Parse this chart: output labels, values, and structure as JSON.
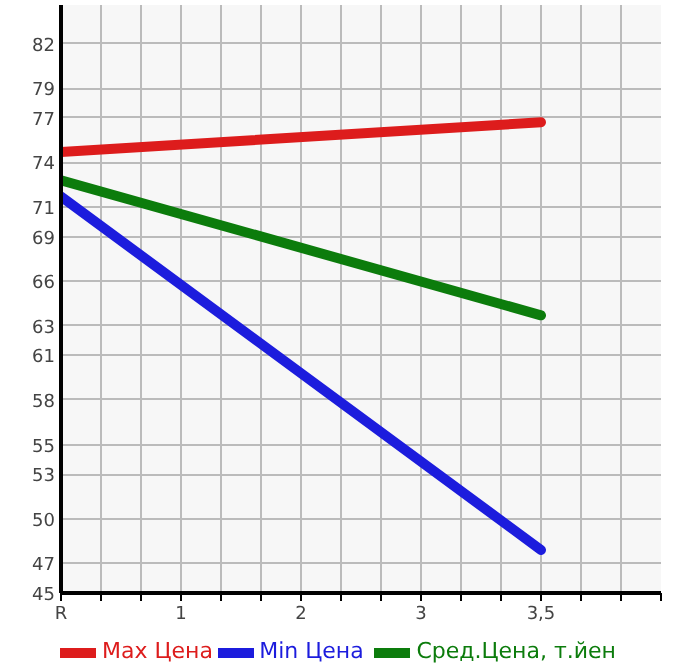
{
  "chart_data": {
    "type": "line",
    "categories": [
      "R",
      "1",
      "2",
      "3",
      "3,5"
    ],
    "series": [
      {
        "name": "Max Цена",
        "color": "#dd1c1c",
        "values": [
          74.7,
          null,
          null,
          null,
          76.7
        ]
      },
      {
        "name": "Min Цена",
        "color": "#1c1cdd",
        "values": [
          71.7,
          null,
          null,
          null,
          47.9
        ]
      },
      {
        "name": "Сред.Цена, т.йен",
        "color": "#0c7c0c",
        "values": [
          72.8,
          null,
          null,
          null,
          63.7
        ]
      }
    ],
    "ylim": [
      45,
      84.6
    ],
    "yticks": [
      45,
      47,
      50,
      53,
      55,
      58,
      61,
      63,
      66,
      69,
      71,
      74,
      77,
      79,
      82
    ],
    "grid": true,
    "legend": "bottom",
    "line_style": "solid"
  }
}
